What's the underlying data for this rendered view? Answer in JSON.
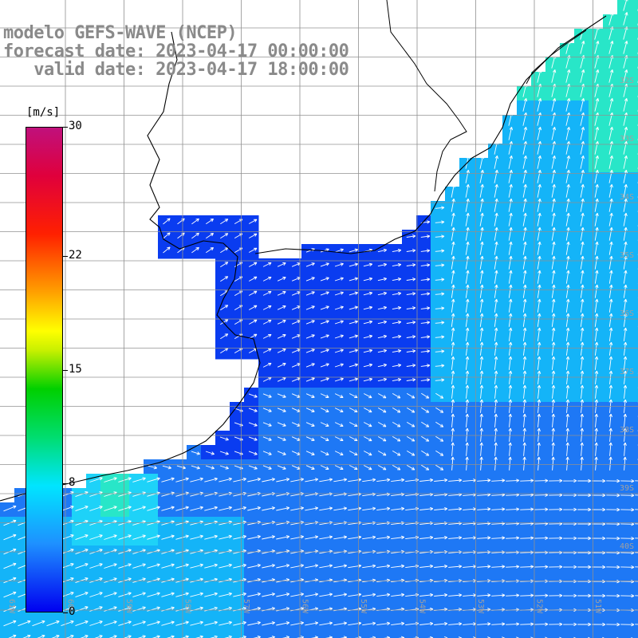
{
  "title": {
    "line1": "modelo GEFS-WAVE (NCEP)",
    "line2": "forecast date: 2023-04-17 00:00:00",
    "line3": "   valid date: 2023-04-17 18:00:00"
  },
  "colorbar": {
    "unit": "[m/s]",
    "ticks": [
      "30",
      "22",
      "15",
      "8",
      "0"
    ],
    "tick_values": [
      30,
      22,
      15,
      8,
      0
    ],
    "colors": [
      "#0000f0",
      "#1e90ff",
      "#00e5ff",
      "#00dd70",
      "#00d000",
      "#ffff00",
      "#ff2000",
      "#c0107c"
    ]
  },
  "map": {
    "longitude_labels": [
      "61W",
      "60W",
      "59W",
      "58W",
      "57W",
      "56W",
      "55W",
      "54W",
      "53W",
      "52W",
      "51W"
    ],
    "latitude_labels": [
      "32S",
      "33S",
      "34S",
      "35S",
      "36S",
      "37S",
      "38S",
      "39S",
      "40S"
    ],
    "ocean_colors": {
      "calm": "#0a3cf0",
      "light": "#1e78f5",
      "moderate": "#14b4f8",
      "breezy": "#1ed2f8",
      "fresh": "#28e6c8"
    },
    "land_color": "#ffffff",
    "vector_color": "#ffffff"
  }
}
